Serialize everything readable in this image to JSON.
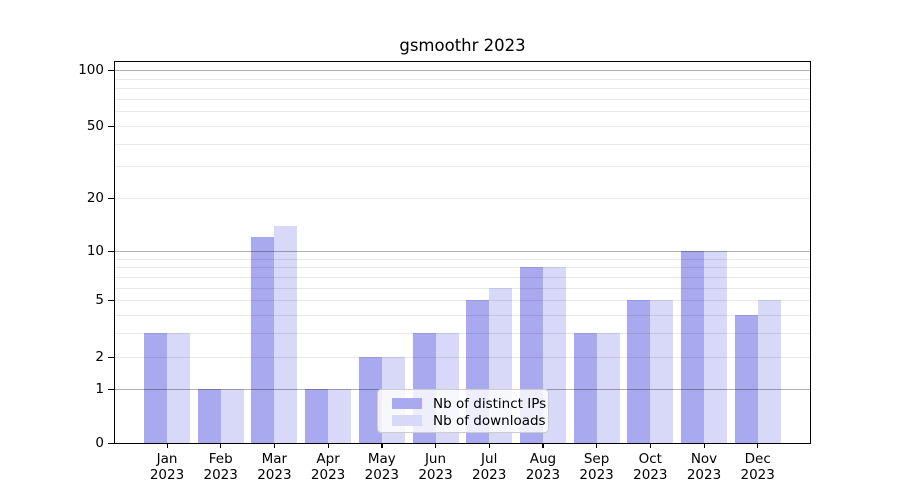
{
  "title": "gsmoothr 2023",
  "chart_data": {
    "type": "bar",
    "title": "gsmoothr 2023",
    "categories": [
      "Jan",
      "Feb",
      "Mar",
      "Apr",
      "May",
      "Jun",
      "Jul",
      "Aug",
      "Sep",
      "Oct",
      "Nov",
      "Dec"
    ],
    "year": "2023",
    "series": [
      {
        "name": "Nb of distinct IPs",
        "color": "#a9a9f0",
        "values": [
          3,
          1,
          12,
          1,
          2,
          3,
          5,
          8,
          3,
          5,
          10,
          4
        ]
      },
      {
        "name": "Nb of downloads",
        "color": "#d8d8f8",
        "values": [
          3,
          1,
          14,
          1,
          2,
          3,
          6,
          8,
          3,
          5,
          10,
          5
        ]
      }
    ],
    "y_axis": {
      "scale": "log10(1+v)",
      "lim": [
        0,
        100
      ],
      "tick_values": [
        0,
        1,
        2,
        5,
        10,
        20,
        50,
        100
      ],
      "tick_labels": [
        "0",
        "1",
        "2",
        "5",
        "10",
        "20",
        "50",
        "100"
      ],
      "major_grid_values": [
        1,
        10,
        100
      ],
      "minor_grid_values": [
        2,
        3,
        4,
        5,
        6,
        7,
        8,
        9,
        20,
        30,
        40,
        50,
        60,
        70,
        80,
        90
      ]
    },
    "legend": {
      "position": "bottom-center",
      "entries": [
        "Nb of distinct IPs",
        "Nb of downloads"
      ]
    },
    "grid": true
  },
  "colors": {
    "bar_distinct_ips": "#a9a9f0",
    "bar_downloads": "#d8d8f8",
    "grid_major": "#b0b0b0",
    "grid_minor": "#e7e7e7",
    "axis_frame": "#000000",
    "legend_border": "#cccccc"
  }
}
